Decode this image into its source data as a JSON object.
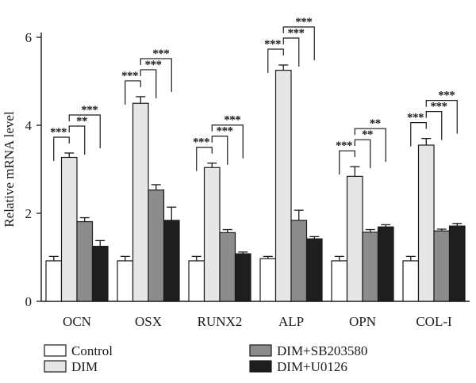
{
  "chart_data": {
    "type": "bar",
    "ylabel": "Relative mRNA level",
    "xlabel": "",
    "ylim": [
      0,
      6
    ],
    "yticks": [
      0,
      2,
      4,
      6
    ],
    "categories": [
      "OCN",
      "OSX",
      "RUNX2",
      "ALP",
      "OPN",
      "COL-I"
    ],
    "series": [
      {
        "name": "Control",
        "color": "#ffffff",
        "values": [
          0.92,
          0.92,
          0.92,
          0.97,
          0.92,
          0.92
        ],
        "errors": [
          0.1,
          0.1,
          0.1,
          0.05,
          0.1,
          0.1
        ]
      },
      {
        "name": "DIM",
        "color": "#e6e6e6",
        "values": [
          3.27,
          4.5,
          3.04,
          5.25,
          2.84,
          3.55
        ],
        "errors": [
          0.1,
          0.15,
          0.1,
          0.12,
          0.22,
          0.15
        ]
      },
      {
        "name": "DIM+SB203580",
        "color": "#8c8c8c",
        "values": [
          1.81,
          2.53,
          1.56,
          1.84,
          1.57,
          1.6
        ],
        "errors": [
          0.09,
          0.12,
          0.07,
          0.23,
          0.06,
          0.04
        ]
      },
      {
        "name": "DIM+U0126",
        "color": "#1e1e1e",
        "values": [
          1.25,
          1.84,
          1.08,
          1.42,
          1.69,
          1.71
        ],
        "errors": [
          0.13,
          0.3,
          0.04,
          0.05,
          0.05,
          0.06
        ]
      }
    ],
    "significance": [
      {
        "category": 0,
        "pairs": [
          [
            "DIM",
            "Control",
            "***"
          ],
          [
            "DIM",
            "DIM+SB203580",
            "**"
          ],
          [
            "DIM",
            "DIM+U0126",
            "***"
          ]
        ]
      },
      {
        "category": 1,
        "pairs": [
          [
            "DIM",
            "Control",
            "***"
          ],
          [
            "DIM",
            "DIM+SB203580",
            "***"
          ],
          [
            "DIM",
            "DIM+U0126",
            "***"
          ]
        ]
      },
      {
        "category": 2,
        "pairs": [
          [
            "DIM",
            "Control",
            "***"
          ],
          [
            "DIM",
            "DIM+SB203580",
            "***"
          ],
          [
            "DIM",
            "DIM+U0126",
            "***"
          ]
        ]
      },
      {
        "category": 3,
        "pairs": [
          [
            "DIM",
            "Control",
            "***"
          ],
          [
            "DIM",
            "DIM+SB203580",
            "***"
          ],
          [
            "DIM",
            "DIM+U0126",
            "***"
          ]
        ]
      },
      {
        "category": 4,
        "pairs": [
          [
            "DIM",
            "Control",
            "***"
          ],
          [
            "DIM",
            "DIM+SB203580",
            "**"
          ],
          [
            "DIM",
            "DIM+U0126",
            "**"
          ]
        ]
      },
      {
        "category": 5,
        "pairs": [
          [
            "DIM",
            "Control",
            "***"
          ],
          [
            "DIM",
            "DIM+SB203580",
            "***"
          ],
          [
            "DIM",
            "DIM+U0126",
            "***"
          ]
        ]
      }
    ],
    "legend": {
      "position": "bottom",
      "items": [
        "Control",
        "DIM",
        "DIM+SB203580",
        "DIM+U0126"
      ]
    },
    "grid": false
  }
}
